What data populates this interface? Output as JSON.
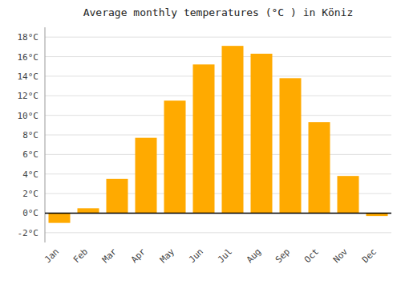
{
  "chart_data": {
    "type": "bar",
    "title": "Average monthly temperatures (°C ) in Köniz",
    "categories": [
      "Jan",
      "Feb",
      "Mar",
      "Apr",
      "May",
      "Jun",
      "Jul",
      "Aug",
      "Sep",
      "Oct",
      "Nov",
      "Dec"
    ],
    "values": [
      -1.0,
      0.5,
      3.5,
      7.7,
      11.5,
      15.2,
      17.1,
      16.3,
      13.8,
      9.3,
      3.8,
      -0.3
    ],
    "color": "#FFAA00",
    "ylim": [
      -3,
      19
    ],
    "yticks": [
      {
        "value": -2,
        "label": "-2°C"
      },
      {
        "value": 0,
        "label": "0°C"
      },
      {
        "value": 2,
        "label": "2°C"
      },
      {
        "value": 4,
        "label": "4°C"
      },
      {
        "value": 6,
        "label": "6°C"
      },
      {
        "value": 8,
        "label": "8°C"
      },
      {
        "value": 10,
        "label": "10°C"
      },
      {
        "value": 12,
        "label": "12°C"
      },
      {
        "value": 14,
        "label": "14°C"
      },
      {
        "value": 16,
        "label": "16°C"
      },
      {
        "value": 18,
        "label": "18°C"
      }
    ],
    "grid": true
  }
}
